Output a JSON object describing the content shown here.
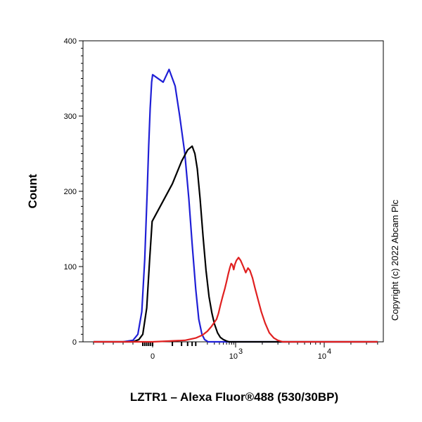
{
  "chart_data": {
    "type": "line",
    "title": "",
    "xlabel": "LZTR1 – Alexa Fluor®488 (530/30BP)",
    "ylabel": "Count",
    "x_scale": "biexponential",
    "xlim": [
      -600,
      40000
    ],
    "ylim": [
      0,
      400
    ],
    "y_ticks": [
      {
        "value": 0,
        "label": "0"
      },
      {
        "value": 100,
        "label": "100"
      },
      {
        "value": 200,
        "label": "200"
      },
      {
        "value": 300,
        "label": "300"
      },
      {
        "value": 400,
        "label": "400"
      }
    ],
    "x_ticks": [
      {
        "value": 0,
        "base": "0",
        "exp": ""
      },
      {
        "value": 1000,
        "base": "10",
        "exp": "3"
      },
      {
        "value": 10000,
        "base": "10",
        "exp": "4"
      }
    ],
    "grid": false,
    "legend": "none",
    "annotation": "Copyright (c) 2022 Abcam Plc",
    "series": [
      {
        "color": "#1f1fd6",
        "points": [
          [
            -600,
            0
          ],
          [
            -300,
            0
          ],
          [
            -200,
            2
          ],
          [
            -150,
            10
          ],
          [
            -110,
            40
          ],
          [
            -80,
            110
          ],
          [
            -55,
            200
          ],
          [
            -40,
            260
          ],
          [
            -25,
            310
          ],
          [
            -10,
            345
          ],
          [
            0,
            355
          ],
          [
            8,
            345
          ],
          [
            15,
            362
          ],
          [
            25,
            340
          ],
          [
            35,
            300
          ],
          [
            50,
            250
          ],
          [
            65,
            190
          ],
          [
            80,
            130
          ],
          [
            100,
            70
          ],
          [
            120,
            30
          ],
          [
            145,
            10
          ],
          [
            170,
            3
          ],
          [
            210,
            0
          ],
          [
            40000,
            0
          ]
        ]
      },
      {
        "color": "#000000",
        "points": [
          [
            -600,
            0
          ],
          [
            -200,
            0
          ],
          [
            -140,
            3
          ],
          [
            -100,
            10
          ],
          [
            -60,
            45
          ],
          [
            -30,
            110
          ],
          [
            -5,
            160
          ],
          [
            20,
            210
          ],
          [
            40,
            240
          ],
          [
            60,
            255
          ],
          [
            80,
            260
          ],
          [
            95,
            250
          ],
          [
            110,
            230
          ],
          [
            130,
            190
          ],
          [
            155,
            140
          ],
          [
            185,
            95
          ],
          [
            220,
            60
          ],
          [
            260,
            38
          ],
          [
            300,
            24
          ],
          [
            360,
            12
          ],
          [
            420,
            6
          ],
          [
            500,
            3
          ],
          [
            600,
            1
          ],
          [
            700,
            0
          ],
          [
            40000,
            0
          ]
        ]
      },
      {
        "color": "#e02020",
        "points": [
          [
            -600,
            0
          ],
          [
            0,
            0
          ],
          [
            50,
            2
          ],
          [
            100,
            5
          ],
          [
            150,
            9
          ],
          [
            200,
            14
          ],
          [
            250,
            20
          ],
          [
            300,
            26
          ],
          [
            340,
            30
          ],
          [
            380,
            38
          ],
          [
            420,
            48
          ],
          [
            480,
            60
          ],
          [
            540,
            70
          ],
          [
            600,
            80
          ],
          [
            660,
            90
          ],
          [
            720,
            98
          ],
          [
            780,
            104
          ],
          [
            840,
            102
          ],
          [
            900,
            96
          ],
          [
            960,
            103
          ],
          [
            1020,
            108
          ],
          [
            1080,
            112
          ],
          [
            1140,
            108
          ],
          [
            1220,
            100
          ],
          [
            1300,
            92
          ],
          [
            1380,
            98
          ],
          [
            1450,
            95
          ],
          [
            1550,
            85
          ],
          [
            1650,
            72
          ],
          [
            1800,
            55
          ],
          [
            1950,
            40
          ],
          [
            2150,
            25
          ],
          [
            2400,
            12
          ],
          [
            2700,
            5
          ],
          [
            3000,
            2
          ],
          [
            3400,
            0
          ],
          [
            40000,
            0
          ]
        ]
      }
    ]
  }
}
